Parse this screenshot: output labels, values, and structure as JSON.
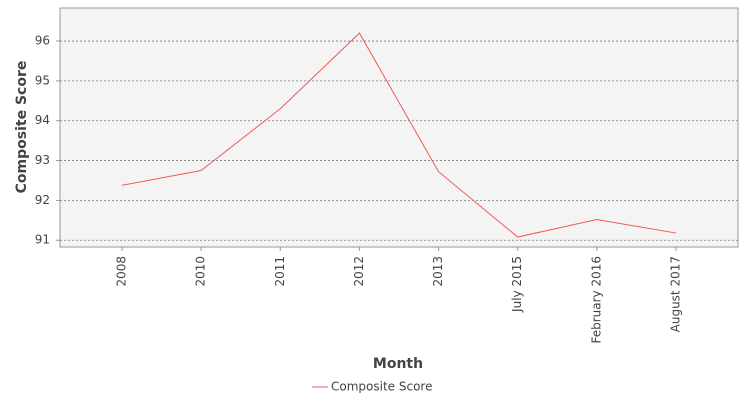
{
  "chart_data": {
    "type": "line",
    "x_label": "Month",
    "y_label": "Composite Score",
    "categories": [
      "2008",
      "2010",
      "2011",
      "2012",
      "2013",
      "July 2015",
      "February 2016",
      "August 2017"
    ],
    "series": [
      {
        "name": "Composite Score",
        "color": "#f05a5a",
        "values": [
          92.38,
          92.75,
          94.3,
          96.2,
          92.72,
          91.08,
          91.52,
          91.18
        ]
      }
    ],
    "ylim": [
      90.83,
      96.83
    ],
    "yticks": [
      91,
      92,
      93,
      94,
      95,
      96
    ],
    "grid": true,
    "legend": "bottom"
  }
}
